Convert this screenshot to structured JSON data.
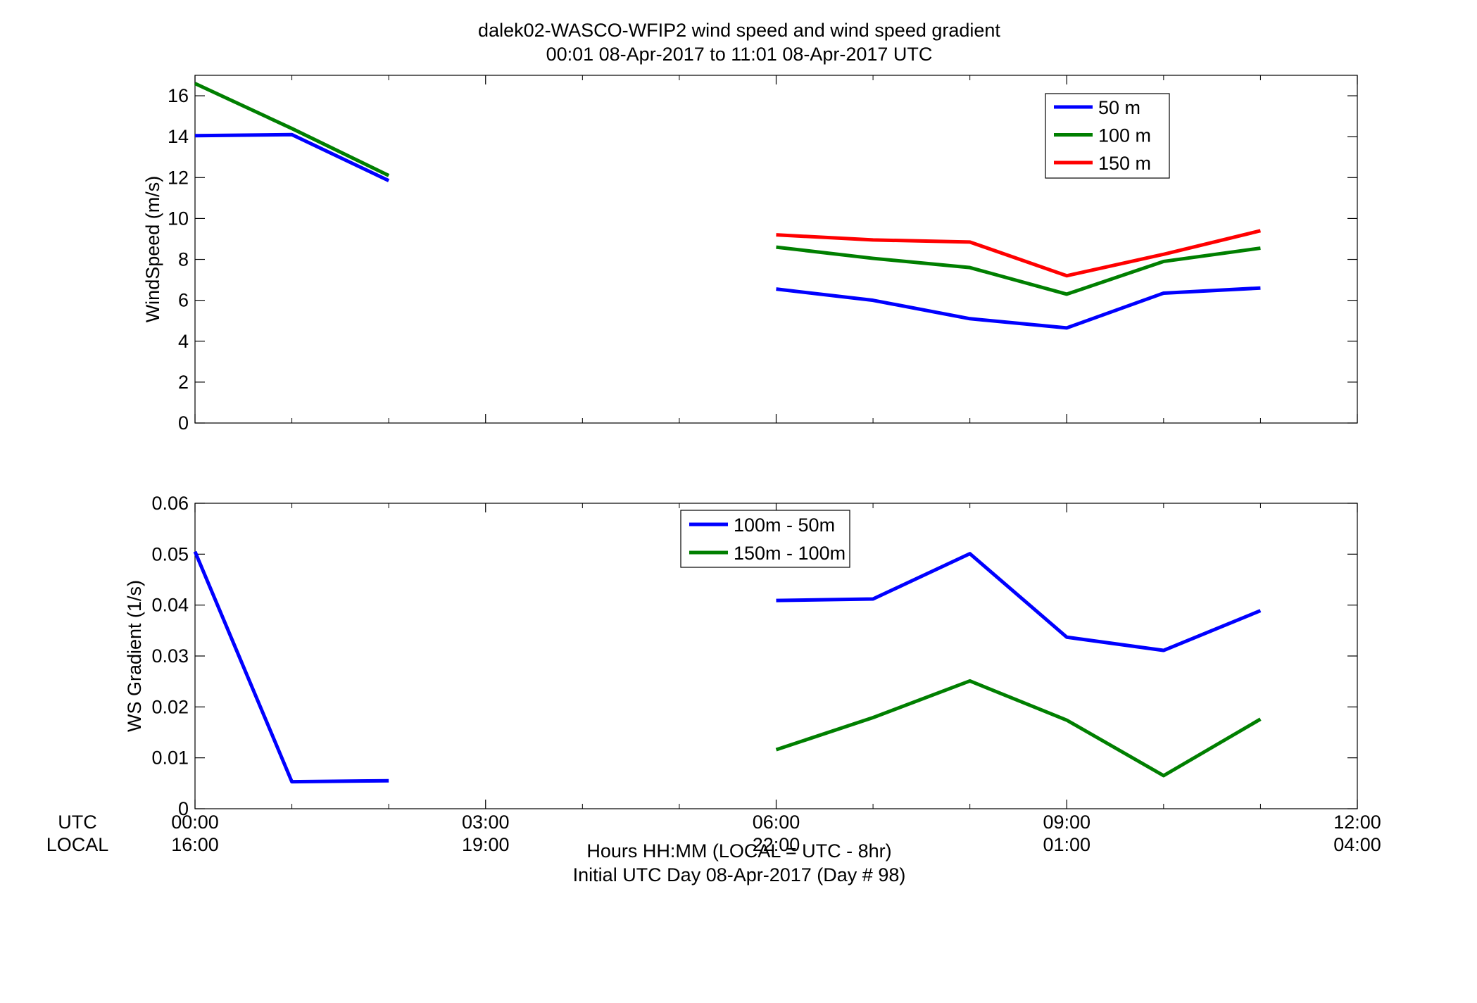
{
  "title_line1": "dalek02-WASCO-WFIP2  wind speed and wind speed gradient",
  "title_line2": "00:01 08-Apr-2017 to 11:01 08-Apr-2017  UTC",
  "x_row_labels": {
    "utc": "UTC",
    "local": "LOCAL"
  },
  "xlabel_line1": "Hours HH:MM  (LOCAL = UTC - 8hr)",
  "xlabel_line2": "Initial UTC Day 08-Apr-2017 (Day # 98)",
  "colors": {
    "blue": "#0000ff",
    "green": "#007f00",
    "red": "#ff0000"
  },
  "chart_data": [
    {
      "type": "line",
      "ylabel": "WindSpeed (m/s)",
      "xlim": [
        0,
        12
      ],
      "ylim": [
        0,
        17
      ],
      "yticks": [
        0,
        2,
        4,
        6,
        8,
        10,
        12,
        14,
        16
      ],
      "xticks_utc": [
        "00:00",
        "03:00",
        "06:00",
        "09:00",
        "12:00"
      ],
      "legend_position": "top-right",
      "series": [
        {
          "name": "50 m",
          "color": "#0000ff",
          "segments": [
            {
              "x": [
                0,
                1,
                2
              ],
              "y": [
                14.05,
                14.1,
                11.85
              ]
            },
            {
              "x": [
                6,
                7,
                8,
                9,
                10,
                11
              ],
              "y": [
                6.55,
                6.0,
                5.1,
                4.65,
                6.35,
                6.6
              ]
            }
          ]
        },
        {
          "name": "100 m",
          "color": "#007f00",
          "segments": [
            {
              "x": [
                0,
                1,
                2
              ],
              "y": [
                16.6,
                14.4,
                12.1
              ]
            },
            {
              "x": [
                6,
                7,
                8,
                9,
                10,
                11
              ],
              "y": [
                8.6,
                8.05,
                7.6,
                6.3,
                7.9,
                8.55
              ]
            }
          ]
        },
        {
          "name": "150 m",
          "color": "#ff0000",
          "segments": [
            {
              "x": [
                6,
                7,
                8,
                9,
                10,
                11
              ],
              "y": [
                9.2,
                8.95,
                8.85,
                7.2,
                8.25,
                9.4
              ]
            }
          ]
        }
      ]
    },
    {
      "type": "line",
      "ylabel": "WS Gradient (1/s)",
      "xlim": [
        0,
        12
      ],
      "ylim": [
        0,
        0.06
      ],
      "yticks": [
        "0",
        "0.01",
        "0.02",
        "0.03",
        "0.04",
        "0.05",
        "0.06"
      ],
      "xticks_utc": [
        "00:00",
        "03:00",
        "06:00",
        "09:00",
        "12:00"
      ],
      "xticks_local": [
        "16:00",
        "19:00",
        "22:00",
        "01:00",
        "04:00"
      ],
      "legend_position": "top-center",
      "series": [
        {
          "name": "100m - 50m",
          "color": "#0000ff",
          "segments": [
            {
              "x": [
                0,
                1,
                2
              ],
              "y": [
                0.0505,
                0.0053,
                0.0055
              ]
            },
            {
              "x": [
                6,
                7,
                8,
                9,
                10,
                11
              ],
              "y": [
                0.0409,
                0.0412,
                0.0501,
                0.0337,
                0.0311,
                0.0389
              ]
            }
          ]
        },
        {
          "name": "150m - 100m",
          "color": "#007f00",
          "segments": [
            {
              "x": [
                6,
                7,
                8,
                9,
                10,
                11
              ],
              "y": [
                0.0116,
                0.0179,
                0.0251,
                0.0174,
                0.0065,
                0.0176
              ]
            }
          ]
        }
      ]
    }
  ]
}
